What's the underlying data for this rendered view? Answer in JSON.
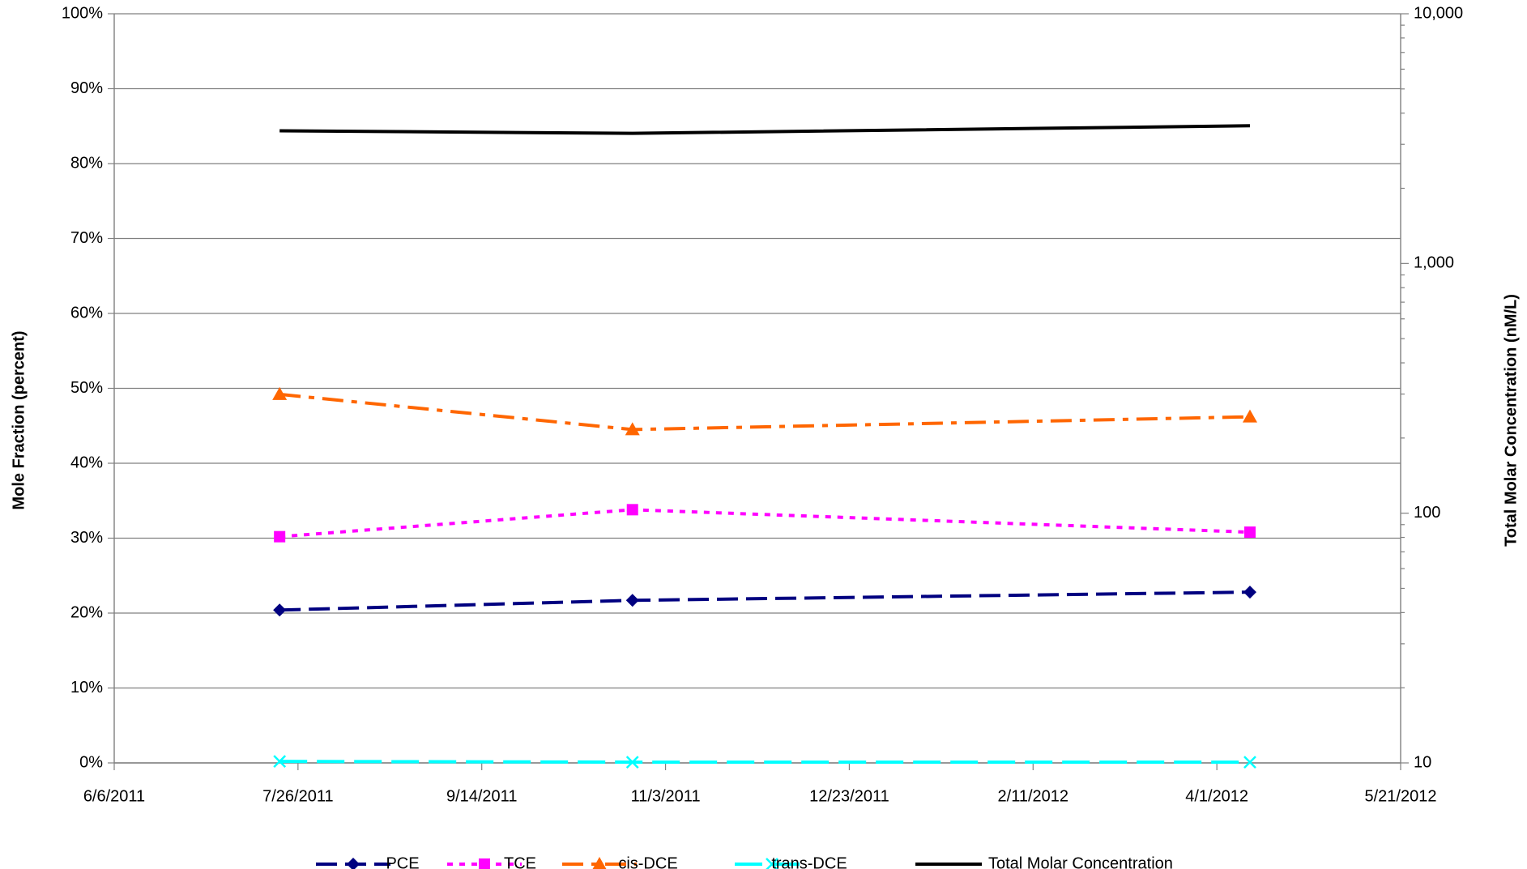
{
  "chart_data": {
    "type": "line",
    "y_axis_label": "Mole Fraction (percent)",
    "y2_axis_label": "Total Molar Concentration (nM/L)",
    "x": [
      "7/21/2011",
      "10/25/2011",
      "4/10/2012"
    ],
    "xlim": [
      "6/6/2011",
      "5/21/2012"
    ],
    "xticks": [
      "6/6/2011",
      "7/26/2011",
      "9/14/2011",
      "11/3/2011",
      "12/23/2011",
      "2/11/2012",
      "4/1/2012",
      "5/21/2012"
    ],
    "ylim": [
      0,
      100
    ],
    "yticks": [
      {
        "value": 0,
        "label": "0%"
      },
      {
        "value": 10,
        "label": "10%"
      },
      {
        "value": 20,
        "label": "20%"
      },
      {
        "value": 30,
        "label": "30%"
      },
      {
        "value": 40,
        "label": "40%"
      },
      {
        "value": 50,
        "label": "50%"
      },
      {
        "value": 60,
        "label": "60%"
      },
      {
        "value": 70,
        "label": "70%"
      },
      {
        "value": 80,
        "label": "80%"
      },
      {
        "value": 90,
        "label": "90%"
      },
      {
        "value": 100,
        "label": "100%"
      }
    ],
    "y2lim": [
      10,
      10000
    ],
    "y2ticks": [
      10,
      100,
      {
        "value": 1000,
        "label": "1,000"
      },
      {
        "value": 10000,
        "label": "10,000"
      }
    ],
    "y2_log": true,
    "grid": true,
    "legend": "bottom",
    "series": [
      {
        "name": "PCE",
        "color": "#000080",
        "style": "dash",
        "marker": "diamond",
        "values": [
          20.4,
          21.7,
          22.8
        ]
      },
      {
        "name": "TCE",
        "color": "#ff00ff",
        "style": "dot",
        "marker": "square",
        "values": [
          30.2,
          33.8,
          30.8
        ]
      },
      {
        "name": "cis-DCE",
        "color": "#ff6600",
        "style": "dashdot",
        "marker": "triangle",
        "values": [
          49.2,
          44.5,
          46.2
        ]
      },
      {
        "name": "trans-DCE",
        "color": "#00ffff",
        "style": "longdash",
        "marker": "x",
        "values": [
          0.2,
          0.1,
          0.1
        ]
      },
      {
        "name": "Total Molar Concentration",
        "color": "#000000",
        "style": "solid",
        "marker": "none",
        "axis": "y2",
        "values": [
          3400,
          3320,
          3560
        ]
      }
    ]
  }
}
